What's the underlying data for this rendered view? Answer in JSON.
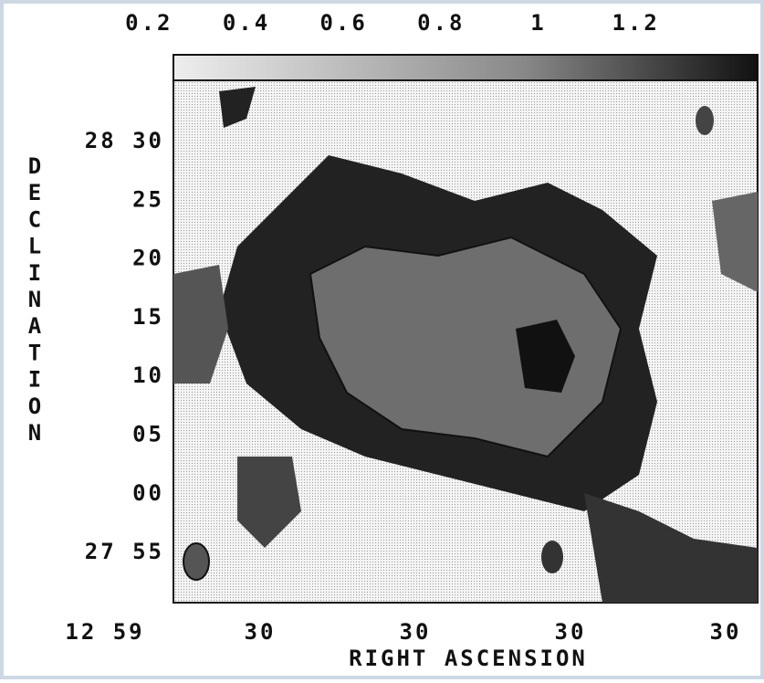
{
  "chart_data": {
    "type": "image",
    "colorbar": {
      "clim": [
        0.25,
        1.45
      ],
      "ticks": [
        0.2,
        0.4,
        0.6,
        0.8,
        1.0,
        1.2
      ]
    },
    "y_axis": {
      "label": "DECLINATION",
      "tick_labels": [
        "28 30",
        "25",
        "20",
        "15",
        "10",
        "05",
        "00",
        "27 55"
      ]
    },
    "x_axis": {
      "label": "RIGHT ASCENSION",
      "tick_labels": [
        "12 59",
        "30",
        "30",
        "30",
        "30"
      ]
    }
  }
}
